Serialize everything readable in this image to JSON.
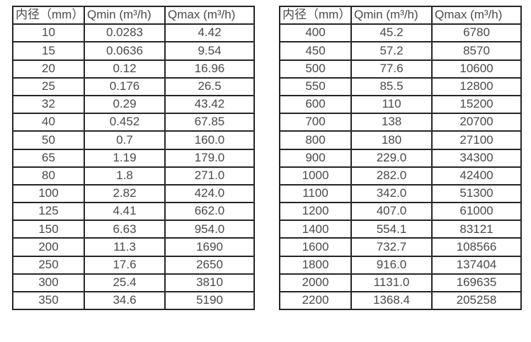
{
  "colors": {
    "border": "#262626",
    "text": "#4a4a4a",
    "background": "#ffffff"
  },
  "tables": [
    {
      "title": "small-diameter-flow-table",
      "headers": [
        "内径（mm）",
        "Qmin (m³/h)",
        "Qmax (m³/h)"
      ],
      "rows": [
        [
          "10",
          "0.0283",
          "4.42"
        ],
        [
          "15",
          "0.0636",
          "9.54"
        ],
        [
          "20",
          "0.12",
          "16.96"
        ],
        [
          "25",
          "0.176",
          "26.5"
        ],
        [
          "32",
          "0.29",
          "43.42"
        ],
        [
          "40",
          "0.452",
          "67.85"
        ],
        [
          "50",
          "0.7",
          "160.0"
        ],
        [
          "65",
          "1.19",
          "179.0"
        ],
        [
          "80",
          "1.8",
          "271.0"
        ],
        [
          "100",
          "2.82",
          "424.0"
        ],
        [
          "125",
          "4.41",
          "662.0"
        ],
        [
          "150",
          "6.63",
          "954.0"
        ],
        [
          "200",
          "11.3",
          "1690"
        ],
        [
          "250",
          "17.6",
          "2650"
        ],
        [
          "300",
          "25.4",
          "3810"
        ],
        [
          "350",
          "34.6",
          "5190"
        ]
      ]
    },
    {
      "title": "large-diameter-flow-table",
      "headers": [
        "内径（mm）",
        "Qmin (m³/h)",
        "Qmax (m³/h)"
      ],
      "rows": [
        [
          "400",
          "45.2",
          "6780"
        ],
        [
          "450",
          "57.2",
          "8570"
        ],
        [
          "500",
          "77.6",
          "10600"
        ],
        [
          "550",
          "85.5",
          "12800"
        ],
        [
          "600",
          "110",
          "15200"
        ],
        [
          "700",
          "138",
          "20700"
        ],
        [
          "800",
          "180",
          "27100"
        ],
        [
          "900",
          "229.0",
          "34300"
        ],
        [
          "1000",
          "282.0",
          "42400"
        ],
        [
          "1100",
          "342.0",
          "51300"
        ],
        [
          "1200",
          "407.0",
          "61000"
        ],
        [
          "1400",
          "554.1",
          "83121"
        ],
        [
          "1600",
          "732.7",
          "108566"
        ],
        [
          "1800",
          "916.0",
          "137404"
        ],
        [
          "2000",
          "1131.0",
          "169635"
        ],
        [
          "2200",
          "1368.4",
          "205258"
        ]
      ]
    }
  ]
}
